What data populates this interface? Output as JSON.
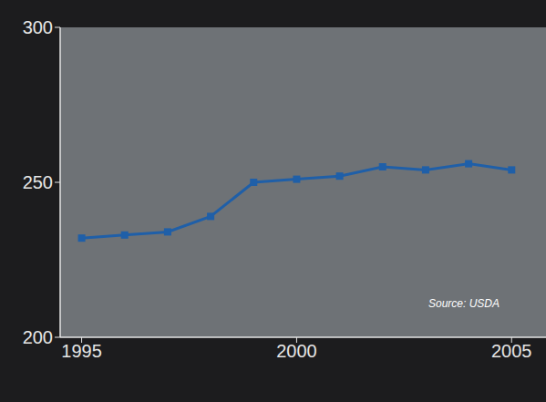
{
  "chart_data": {
    "type": "line",
    "x": [
      1995,
      1996,
      1997,
      1998,
      1999,
      2000,
      2001,
      2002,
      2003,
      2004,
      2005
    ],
    "values": [
      232,
      233,
      234,
      239,
      250,
      251,
      252,
      255,
      254,
      256,
      254
    ],
    "color": "#1f5fa8",
    "marker": "square",
    "xlim": [
      1994.5,
      2005.8
    ],
    "xticks": [
      1995,
      2000,
      2005
    ],
    "ylim": [
      200,
      300
    ],
    "yticks": [
      200,
      250,
      300
    ],
    "grid": false,
    "annotation": "Source: USDA"
  }
}
